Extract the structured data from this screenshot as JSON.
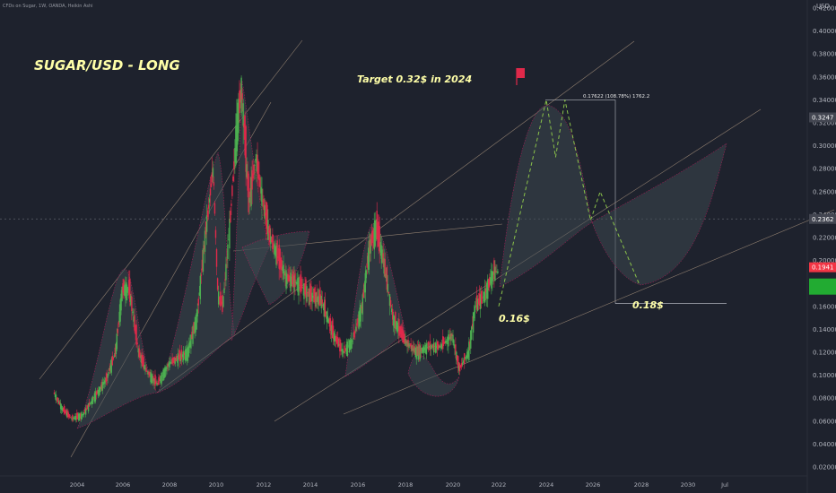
{
  "header": {
    "symbol_info": "CFDs on Sugar, 1W, OANDA, Heikin Ashi"
  },
  "chart_data": {
    "type": "line",
    "title": "SUGAR/USD - LONG",
    "currency": "USD",
    "x_ticks": [
      "2004",
      "2006",
      "2008",
      "2010",
      "2012",
      "2014",
      "2016",
      "2018",
      "2020",
      "2022",
      "2024",
      "2026",
      "2028",
      "2030",
      "Jul"
    ],
    "y_ticks": [
      0.02,
      0.04,
      0.06,
      0.08,
      0.1,
      0.12,
      0.14,
      0.16,
      0.18,
      0.2,
      0.22,
      0.24,
      0.26,
      0.28,
      0.3,
      0.32,
      0.34,
      0.36,
      0.38,
      0.4,
      0.42
    ],
    "ylim": [
      0.0,
      0.42
    ],
    "xlim": [
      2002.8,
      2031.5
    ],
    "series": [
      {
        "type": "candles",
        "x": [
          2003.0,
          2003.4,
          2003.8,
          2004.3,
          2004.8,
          2005.3,
          2005.7,
          2006.0,
          2006.3,
          2006.7,
          2007.0,
          2007.5,
          2008.0,
          2008.4,
          2008.8,
          2009.2,
          2009.6,
          2009.9,
          2010.1,
          2010.3,
          2010.6,
          2010.9,
          2011.1,
          2011.4,
          2011.7,
          2012.0,
          2012.3,
          2012.7,
          2013.0,
          2013.5,
          2014.0,
          2014.5,
          2015.0,
          2015.4,
          2015.8,
          2016.2,
          2016.5,
          2016.8,
          2017.1,
          2017.5,
          2018.0,
          2018.5,
          2019.0,
          2019.5,
          2020.0,
          2020.3,
          2020.7,
          2021.0,
          2021.4,
          2021.8,
          2022.0
        ],
        "y": [
          0.085,
          0.07,
          0.062,
          0.066,
          0.082,
          0.096,
          0.12,
          0.175,
          0.175,
          0.12,
          0.105,
          0.092,
          0.11,
          0.115,
          0.12,
          0.15,
          0.23,
          0.28,
          0.17,
          0.16,
          0.23,
          0.32,
          0.35,
          0.25,
          0.29,
          0.25,
          0.22,
          0.2,
          0.185,
          0.18,
          0.17,
          0.165,
          0.135,
          0.12,
          0.13,
          0.16,
          0.21,
          0.23,
          0.2,
          0.15,
          0.13,
          0.12,
          0.125,
          0.125,
          0.135,
          0.105,
          0.12,
          0.16,
          0.17,
          0.19,
          0.19
        ]
      },
      {
        "type": "projection",
        "x": [
          2022.0,
          2024.0,
          2024.4,
          2024.8,
          2025.9,
          2026.3,
          2027.9
        ],
        "y": [
          0.16,
          0.34,
          0.29,
          0.34,
          0.235,
          0.26,
          0.18
        ]
      }
    ],
    "reference_lines": [
      0.2362,
      0.1625
    ],
    "price_labels": [
      {
        "value": "0.3247",
        "color": "#434651"
      },
      {
        "value": "0.2362",
        "color": "#434651"
      },
      {
        "value": "0.1941",
        "color": "#f23645"
      },
      {
        "value": "",
        "color": "#22ab32"
      }
    ],
    "annotations": {
      "target": "Target 0.32$ in 2024",
      "measure": "0.17622 (108.78%) 1762.2",
      "low_a": "0.16$",
      "low_b": "0.18$"
    }
  }
}
